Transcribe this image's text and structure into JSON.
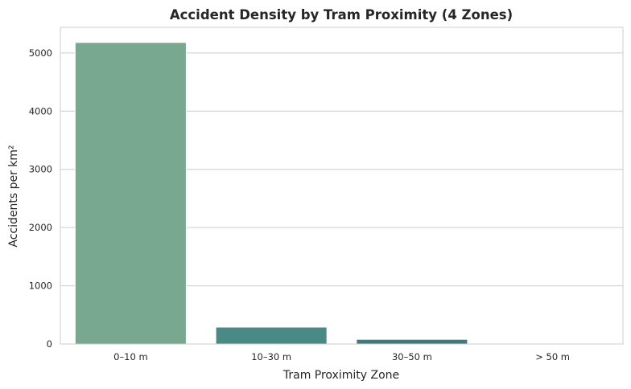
{
  "chart_data": {
    "type": "bar",
    "title": "Accident Density by Tram Proximity (4 Zones)",
    "xlabel": "Tram Proximity Zone",
    "ylabel": "Accidents per km²",
    "categories": [
      "0–10 m",
      "10–30 m",
      "30–50 m",
      "> 50 m"
    ],
    "values": [
      5180,
      290,
      80,
      8
    ],
    "ylim": [
      0,
      5440
    ],
    "yticks": [
      0,
      1000,
      2000,
      3000,
      4000,
      5000
    ],
    "grid": true,
    "colors": [
      "#78a990",
      "#4a8a85",
      "#3f7b7d",
      "#34646e"
    ]
  }
}
